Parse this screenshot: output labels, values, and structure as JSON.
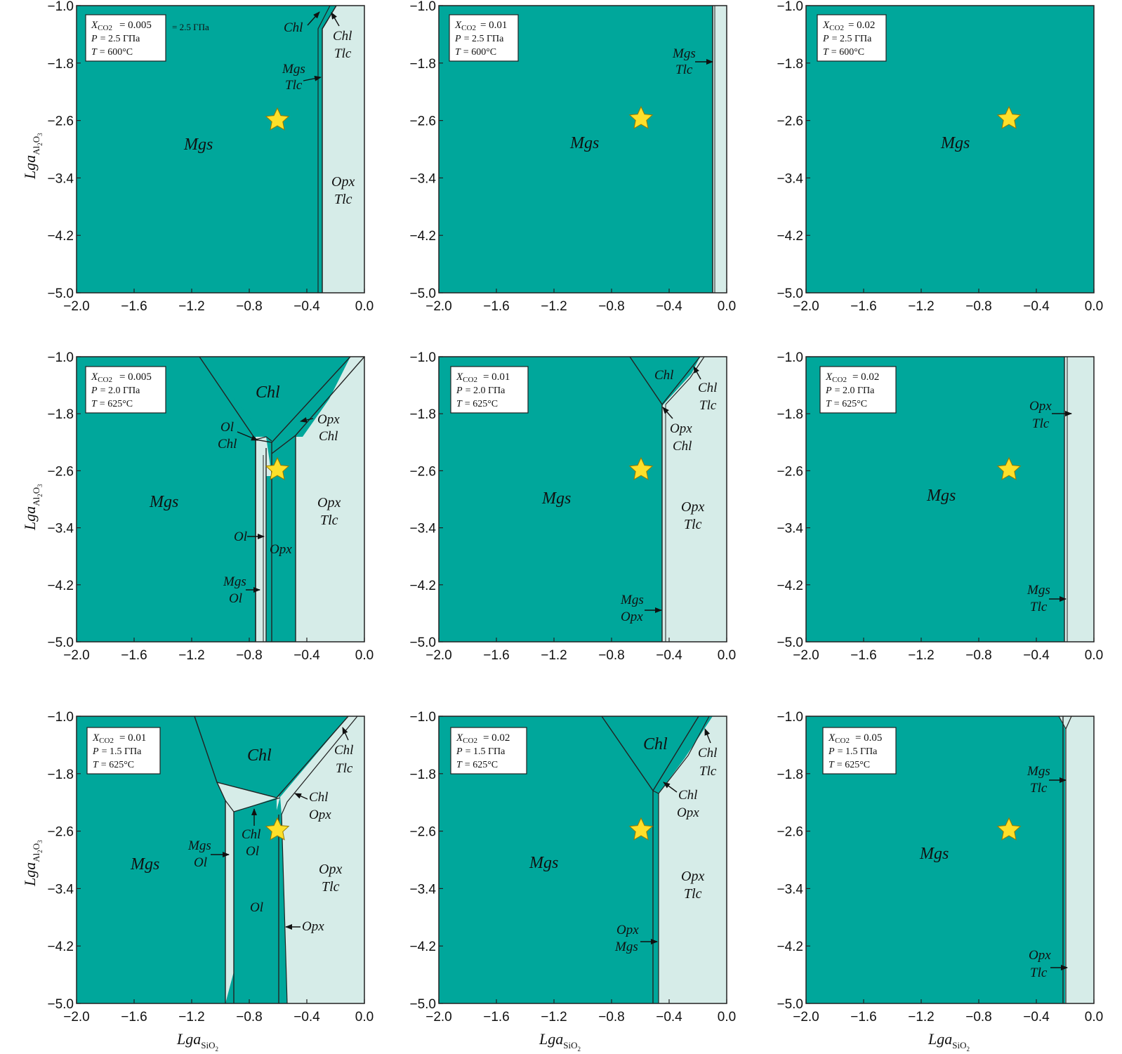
{
  "colors": {
    "mgs_field": "#00a79b",
    "light_field": "#d6ece8",
    "star": "#fde02a",
    "star_stroke": "#9a7a00"
  },
  "axes": {
    "x_ticks": [
      "−2.0",
      "−1.6",
      "−1.2",
      "−0.8",
      "−0.4",
      "0.0"
    ],
    "y_ticks": [
      "−1.0",
      "−1.8",
      "−2.6",
      "−3.4",
      "−4.2",
      "−5.0"
    ],
    "x_label_main": "Lga",
    "x_label_sub": "SiO",
    "x_label_sub2": "2",
    "y_label_main": "Lga",
    "y_label_sub": "Al",
    "y_label_sub2": "2",
    "y_label_sub3": "O",
    "y_label_sub4": "3"
  },
  "panels": [
    {
      "box": {
        "x": "X",
        "x_sub": "CO2",
        "x_val": "= 0.005",
        "extra": "= 2.5 ГПа",
        "p": "P",
        "p_val": "= 2.5 ГПа",
        "t": "T",
        "t_val": "= 600°C"
      },
      "labels": {
        "mgs": "Mgs",
        "chl_a": "Chl",
        "chl_tlc_1": "Chl",
        "chl_tlc_2": "Tlc",
        "mgs_tlc_1": "Mgs",
        "mgs_tlc_2": "Tlc",
        "opx_tlc_1": "Opx",
        "opx_tlc_2": "Tlc"
      }
    },
    {
      "box": {
        "x": "X",
        "x_sub": "CO2",
        "x_val": "= 0.01",
        "p": "P",
        "p_val": "= 2.5 ГПа",
        "t": "T",
        "t_val": "= 600°C"
      },
      "labels": {
        "mgs": "Mgs",
        "mgs_tlc_1": "Mgs",
        "mgs_tlc_2": "Tlc"
      }
    },
    {
      "box": {
        "x": "X",
        "x_sub": "CO2",
        "x_val": "= 0.02",
        "p": "P",
        "p_val": "= 2.5 ГПа",
        "t": "T",
        "t_val": "= 600°C"
      },
      "labels": {
        "mgs": "Mgs"
      }
    },
    {
      "box": {
        "x": "X",
        "x_sub": "CO2",
        "x_val": "= 0.005",
        "p": "P",
        "p_val": "= 2.0 ГПа",
        "t": "T",
        "t_val": "= 625°C"
      },
      "labels": {
        "mgs": "Mgs",
        "chl": "Chl",
        "ol_chl_1": "Ol",
        "ol_chl_2": "Chl",
        "opx_chl_1": "Opx",
        "opx_chl_2": "Chl",
        "ol": "Ol",
        "opx": "Opx",
        "mgs_ol_1": "Mgs",
        "mgs_ol_2": "Ol",
        "opx_tlc_1": "Opx",
        "opx_tlc_2": "Tlc"
      }
    },
    {
      "box": {
        "x": "X",
        "x_sub": "CO2",
        "x_val": "= 0.01",
        "p": "P",
        "p_val": "= 2.0 ГПа",
        "t": "T",
        "t_val": "= 625°C"
      },
      "labels": {
        "mgs": "Mgs",
        "chl": "Chl",
        "chl_tlc_1": "Chl",
        "chl_tlc_2": "Tlc",
        "opx_chl_1": "Opx",
        "opx_chl_2": "Chl",
        "opx_tlc_1": "Opx",
        "opx_tlc_2": "Tlc",
        "mgs_opx_1": "Mgs",
        "mgs_opx_2": "Opx"
      }
    },
    {
      "box": {
        "x": "X",
        "x_sub": "CO2",
        "x_val": "= 0.02",
        "p": "P",
        "p_val": "= 2.0 ГПа",
        "t": "T",
        "t_val": "= 625°C"
      },
      "labels": {
        "mgs": "Mgs",
        "opx_tlc_1": "Opx",
        "opx_tlc_2": "Tlc",
        "mgs_tlc_1": "Mgs",
        "mgs_tlc_2": "Tlc"
      }
    },
    {
      "box": {
        "x": "X",
        "x_sub": "CO2",
        "x_val": "= 0.01",
        "p": "P",
        "p_val": "= 1.5 ГПа",
        "t": "T",
        "t_val": "= 625°C"
      },
      "labels": {
        "mgs": "Mgs",
        "chl": "Chl",
        "chl_tlc_1": "Chl",
        "chl_tlc_2": "Tlc",
        "chl_opx_1": "Chl",
        "chl_opx_2": "Opx",
        "chl_ol_1": "Chl",
        "chl_ol_2": "Ol",
        "mgs_ol_1": "Mgs",
        "mgs_ol_2": "Ol",
        "ol": "Ol",
        "opx": "Opx",
        "opx_tlc_1": "Opx",
        "opx_tlc_2": "Tlc"
      }
    },
    {
      "box": {
        "x": "X",
        "x_sub": "CO2",
        "x_val": "= 0.02",
        "p": "P",
        "p_val": "= 1.5 ГПа",
        "t": "T",
        "t_val": "= 625°C"
      },
      "labels": {
        "mgs": "Mgs",
        "chl": "Chl",
        "chl_tlc_1": "Chl",
        "chl_tlc_2": "Tlc",
        "chl_opx_1": "Chl",
        "chl_opx_2": "Opx",
        "opx_tlc_1": "Opx",
        "opx_tlc_2": "Tlc",
        "opx_mgs_1": "Opx",
        "opx_mgs_2": "Mgs"
      }
    },
    {
      "box": {
        "x": "X",
        "x_sub": "CO2",
        "x_val": "= 0.05",
        "p": "P",
        "p_val": "= 1.5 ГПа",
        "t": "T",
        "t_val": "= 625°C"
      },
      "labels": {
        "mgs": "Mgs",
        "mgs_tlc_1": "Mgs",
        "mgs_tlc_2": "Tlc",
        "opx_tlc_1": "Opx",
        "opx_tlc_2": "Tlc"
      }
    }
  ]
}
